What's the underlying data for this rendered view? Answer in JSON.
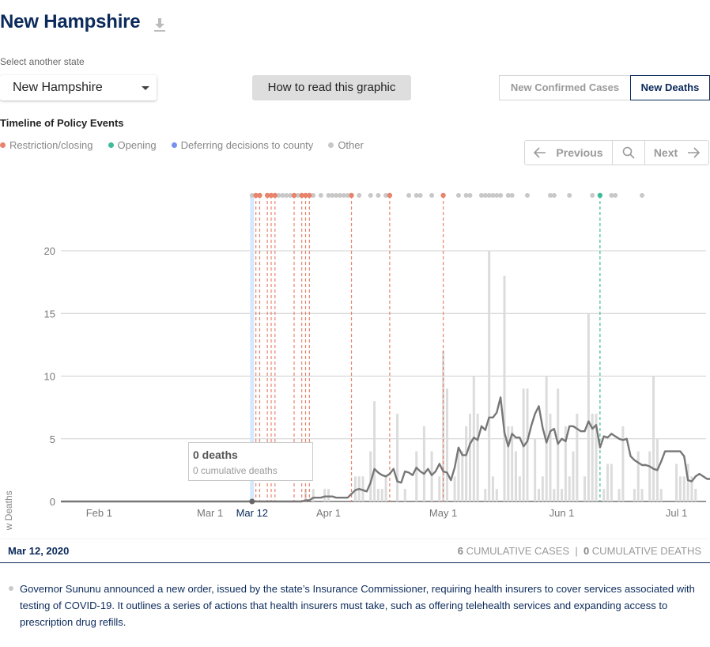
{
  "header": {
    "title": "New Hampshire"
  },
  "state_selector": {
    "label": "Select another state",
    "value": "New Hampshire"
  },
  "howto_label": "How to read this graphic",
  "metric_tabs": {
    "cases": "New Confirmed Cases",
    "deaths": "New Deaths",
    "active": "deaths"
  },
  "timeline": {
    "title": "Timeline of Policy Events",
    "legend": [
      {
        "label": "Restriction/closing",
        "color": "#e8836c"
      },
      {
        "label": "Opening",
        "color": "#3dbb9b"
      },
      {
        "label": "Deferring decisions to county",
        "color": "#7590f0"
      },
      {
        "label": "Other",
        "color": "#c8c8c8"
      }
    ]
  },
  "pager": {
    "previous": "Previous",
    "next": "Next"
  },
  "tooltip": {
    "main": "0 deaths",
    "sub": "0 cumulative deaths"
  },
  "chart_data": {
    "type": "bar",
    "ylabel": "New Deaths",
    "ylim": [
      0,
      25
    ],
    "yticks": [
      0,
      5,
      10,
      15,
      20
    ],
    "start_date": "2020-01-22",
    "xticks": [
      {
        "label": "Feb 1",
        "date": "2020-02-01"
      },
      {
        "label": "Mar 1",
        "date": "2020-03-01"
      },
      {
        "label": "Mar 12",
        "date": "2020-03-12",
        "highlight": true
      },
      {
        "label": "Apr 1",
        "date": "2020-04-01"
      },
      {
        "label": "May 1",
        "date": "2020-05-01"
      },
      {
        "label": "Jun 1",
        "date": "2020-06-01"
      },
      {
        "label": "Jul 1",
        "date": "2020-07-01"
      }
    ],
    "bar_series": {
      "name": "New Deaths",
      "color": "#dcdcdc",
      "values": [
        0,
        0,
        0,
        0,
        0,
        0,
        0,
        0,
        0,
        0,
        0,
        0,
        0,
        0,
        0,
        0,
        0,
        0,
        0,
        0,
        0,
        0,
        0,
        0,
        0,
        0,
        0,
        0,
        0,
        0,
        0,
        0,
        0,
        0,
        0,
        0,
        0,
        0,
        0,
        0,
        0,
        0,
        0,
        0,
        0,
        0,
        0,
        0,
        0,
        0,
        0,
        0,
        0,
        0,
        0,
        0,
        0,
        0,
        0,
        0,
        0,
        0,
        0,
        0,
        1,
        0,
        1,
        0,
        0,
        1,
        1,
        0,
        0,
        0,
        0,
        0,
        0,
        2,
        2,
        2,
        0,
        4,
        8,
        1,
        1,
        2,
        0,
        0,
        7,
        0,
        1,
        0,
        0,
        4,
        0,
        6,
        0,
        4,
        0,
        2,
        12,
        9,
        0,
        2,
        4,
        4,
        6,
        7,
        10,
        7,
        0,
        1,
        20,
        2,
        1,
        0,
        18,
        6,
        6,
        4,
        2,
        9,
        9,
        0,
        5,
        1,
        2,
        10,
        7,
        1,
        9,
        1,
        6,
        2,
        4,
        7,
        0,
        2,
        15,
        7,
        7,
        0,
        1,
        3,
        3,
        0,
        1,
        6,
        0,
        0,
        1,
        4,
        1,
        0,
        4,
        10,
        5,
        1,
        0,
        0,
        0,
        3,
        2,
        2,
        3,
        2,
        1
      ]
    },
    "line_series": {
      "name": "7-day average",
      "color": "#777777",
      "values": [
        0,
        0,
        0,
        0,
        0,
        0,
        0,
        0,
        0,
        0,
        0,
        0,
        0,
        0,
        0,
        0,
        0,
        0,
        0,
        0,
        0,
        0,
        0,
        0,
        0,
        0,
        0,
        0,
        0,
        0,
        0,
        0,
        0,
        0,
        0,
        0,
        0,
        0,
        0,
        0,
        0,
        0,
        0,
        0,
        0,
        0,
        0,
        0,
        0,
        0,
        0,
        0,
        0,
        0,
        0,
        0,
        0,
        0,
        0,
        0,
        0,
        0,
        0,
        0,
        0.1,
        0.1,
        0.3,
        0.3,
        0.3,
        0.4,
        0.4,
        0.4,
        0.3,
        0.3,
        0.3,
        0.3,
        0.6,
        0.9,
        1.0,
        0.9,
        0.8,
        1.5,
        2.6,
        2.3,
        2.1,
        2.0,
        2.2,
        2.6,
        1.6,
        1.5,
        2.4,
        2.3,
        2.1,
        2.7,
        2.4,
        2.2,
        2.6,
        2.1,
        2.4,
        3.0,
        2.4,
        2.3,
        1.7,
        2.7,
        4.3,
        3.7,
        3.7,
        4.6,
        5.1,
        4.9,
        6.0,
        5.7,
        6.7,
        6.7,
        7.1,
        8.3,
        5.5,
        4.4,
        5.4,
        5.1,
        5.1,
        4.4,
        4.8,
        6.0,
        7.0,
        7.6,
        5.9,
        4.7,
        5.6,
        5.8,
        4.6,
        5.0,
        4.8,
        6.0,
        6.0,
        5.8,
        5.6,
        5.6,
        6.4,
        5.8,
        6.1,
        4.3,
        5.2,
        5.1,
        5.4,
        5.2,
        5.0,
        4.9,
        5.0,
        3.6,
        3.3,
        3.1,
        2.9,
        2.9,
        2.8,
        2.6,
        2.5,
        3.2,
        4.0,
        4.0,
        4.0,
        4.0,
        4.0,
        3.6,
        1.7,
        1.6,
        2.0,
        2.2,
        2.0,
        1.8,
        1.8,
        1.9
      ]
    },
    "selected_date": "2020-03-12",
    "policy_events": {
      "restriction": [
        "2020-03-13",
        "2020-03-14",
        "2020-03-16",
        "2020-03-17",
        "2020-03-18",
        "2020-03-23",
        "2020-03-25",
        "2020-03-26",
        "2020-03-27",
        "2020-04-07",
        "2020-04-17",
        "2020-05-01"
      ],
      "opening": [
        "2020-06-11"
      ],
      "other": [
        "2020-03-12",
        "2020-03-19",
        "2020-03-20",
        "2020-03-21",
        "2020-03-22",
        "2020-03-24",
        "2020-03-28",
        "2020-03-30",
        "2020-04-01",
        "2020-04-02",
        "2020-04-03",
        "2020-04-04",
        "2020-04-05",
        "2020-04-06",
        "2020-04-09",
        "2020-04-12",
        "2020-04-14",
        "2020-04-16",
        "2020-04-22",
        "2020-04-24",
        "2020-04-25",
        "2020-04-28",
        "2020-05-05",
        "2020-05-07",
        "2020-05-08",
        "2020-05-11",
        "2020-05-12",
        "2020-05-13",
        "2020-05-14",
        "2020-05-15",
        "2020-05-16",
        "2020-05-18",
        "2020-05-19",
        "2020-05-23",
        "2020-05-29",
        "2020-05-30",
        "2020-06-03",
        "2020-06-09",
        "2020-06-14",
        "2020-06-15",
        "2020-06-22"
      ]
    }
  },
  "footer": {
    "date": "Mar 12, 2020",
    "cases_count": "6",
    "cases_label": "CUMULATIVE CASES",
    "deaths_count": "0",
    "deaths_label": "CUMULATIVE DEATHS",
    "separator": "|"
  },
  "event": {
    "text": "Governor Sununu announced a new order, issued by the state’s Insurance Commissioner, requiring health insurers to cover services associated with testing of COVID-19. It outlines a series of actions that health insurers must take, such as offering telehealth services and expanding access to prescription drug refills."
  }
}
